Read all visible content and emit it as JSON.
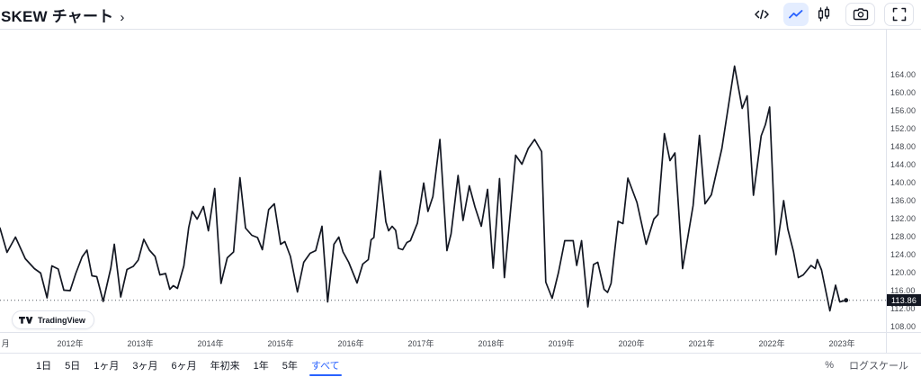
{
  "header": {
    "title": "SKEW チャート",
    "chevron": "›",
    "tools": {
      "code": "embed-code",
      "line_style": "line-chart",
      "candle_style": "candlestick-chart",
      "snapshot": "camera",
      "fullscreen": "fullscreen"
    }
  },
  "chart_data": {
    "type": "line",
    "title": "SKEW チャート",
    "xlabel": "",
    "ylabel": "",
    "xlim": [
      2011.0,
      2023.6
    ],
    "ylim": [
      106.6,
      173.6
    ],
    "grid": false,
    "legend": null,
    "last_value": 113.86,
    "last_value_label": "113.86",
    "y_ticks": [
      "164.00",
      "160.00",
      "156.00",
      "152.00",
      "148.00",
      "144.00",
      "140.00",
      "136.00",
      "132.00",
      "128.00",
      "124.00",
      "120.00",
      "116.00",
      "112.00",
      "108.00"
    ],
    "x_ticks": [
      {
        "label": "月",
        "year": 2011.08
      },
      {
        "label": "2012年",
        "year": 2012
      },
      {
        "label": "2013年",
        "year": 2013
      },
      {
        "label": "2014年",
        "year": 2014
      },
      {
        "label": "2015年",
        "year": 2015
      },
      {
        "label": "2016年",
        "year": 2016
      },
      {
        "label": "2017年",
        "year": 2017
      },
      {
        "label": "2018年",
        "year": 2018
      },
      {
        "label": "2019年",
        "year": 2019
      },
      {
        "label": "2020年",
        "year": 2020
      },
      {
        "label": "2021年",
        "year": 2021
      },
      {
        "label": "2022年",
        "year": 2022
      },
      {
        "label": "2023年",
        "year": 2023
      }
    ],
    "series": [
      {
        "name": "SKEW",
        "points": [
          [
            2011.0,
            129.9
          ],
          [
            2011.1,
            124.5
          ],
          [
            2011.22,
            127.9
          ],
          [
            2011.36,
            123.1
          ],
          [
            2011.49,
            120.9
          ],
          [
            2011.58,
            119.9
          ],
          [
            2011.67,
            114.4
          ],
          [
            2011.74,
            121.5
          ],
          [
            2011.83,
            120.8
          ],
          [
            2011.91,
            116.1
          ],
          [
            2012.0,
            116.0
          ],
          [
            2012.08,
            119.8
          ],
          [
            2012.17,
            123.5
          ],
          [
            2012.24,
            125.0
          ],
          [
            2012.31,
            119.3
          ],
          [
            2012.38,
            119.1
          ],
          [
            2012.47,
            113.6
          ],
          [
            2012.58,
            121.0
          ],
          [
            2012.63,
            126.3
          ],
          [
            2012.72,
            114.6
          ],
          [
            2012.81,
            120.7
          ],
          [
            2012.9,
            121.4
          ],
          [
            2012.97,
            122.8
          ],
          [
            2013.05,
            127.4
          ],
          [
            2013.13,
            125.0
          ],
          [
            2013.21,
            123.6
          ],
          [
            2013.28,
            119.5
          ],
          [
            2013.36,
            119.8
          ],
          [
            2013.42,
            116.3
          ],
          [
            2013.47,
            117.1
          ],
          [
            2013.53,
            116.5
          ],
          [
            2013.62,
            121.5
          ],
          [
            2013.69,
            130.0
          ],
          [
            2013.74,
            133.6
          ],
          [
            2013.81,
            131.9
          ],
          [
            2013.9,
            134.7
          ],
          [
            2013.97,
            129.3
          ],
          [
            2014.06,
            138.7
          ],
          [
            2014.15,
            117.6
          ],
          [
            2014.24,
            123.3
          ],
          [
            2014.33,
            124.6
          ],
          [
            2014.42,
            141.1
          ],
          [
            2014.5,
            129.9
          ],
          [
            2014.59,
            128.3
          ],
          [
            2014.67,
            127.8
          ],
          [
            2014.74,
            125.1
          ],
          [
            2014.83,
            134.0
          ],
          [
            2014.91,
            135.3
          ],
          [
            2015.0,
            126.3
          ],
          [
            2015.06,
            126.9
          ],
          [
            2015.14,
            123.6
          ],
          [
            2015.24,
            115.7
          ],
          [
            2015.33,
            122.3
          ],
          [
            2015.42,
            124.3
          ],
          [
            2015.5,
            124.9
          ],
          [
            2015.59,
            130.3
          ],
          [
            2015.67,
            113.5
          ],
          [
            2015.76,
            126.3
          ],
          [
            2015.83,
            127.9
          ],
          [
            2015.89,
            124.6
          ],
          [
            2015.97,
            122.3
          ],
          [
            2016.09,
            117.7
          ],
          [
            2016.17,
            121.9
          ],
          [
            2016.25,
            122.9
          ],
          [
            2016.29,
            127.3
          ],
          [
            2016.33,
            127.8
          ],
          [
            2016.42,
            142.6
          ],
          [
            2016.5,
            131.3
          ],
          [
            2016.54,
            129.3
          ],
          [
            2016.59,
            130.3
          ],
          [
            2016.64,
            129.4
          ],
          [
            2016.68,
            125.4
          ],
          [
            2016.74,
            125.1
          ],
          [
            2016.8,
            126.7
          ],
          [
            2016.85,
            127.1
          ],
          [
            2016.95,
            131.0
          ],
          [
            2017.04,
            139.9
          ],
          [
            2017.1,
            133.6
          ],
          [
            2017.17,
            136.9
          ],
          [
            2017.27,
            149.6
          ],
          [
            2017.37,
            124.9
          ],
          [
            2017.43,
            128.6
          ],
          [
            2017.53,
            141.6
          ],
          [
            2017.6,
            131.6
          ],
          [
            2017.69,
            139.3
          ],
          [
            2017.77,
            134.6
          ],
          [
            2017.86,
            130.3
          ],
          [
            2017.95,
            138.5
          ],
          [
            2018.03,
            121.0
          ],
          [
            2018.12,
            140.9
          ],
          [
            2018.19,
            118.9
          ],
          [
            2018.35,
            146.1
          ],
          [
            2018.44,
            144.1
          ],
          [
            2018.53,
            147.6
          ],
          [
            2018.62,
            149.6
          ],
          [
            2018.72,
            146.9
          ],
          [
            2018.78,
            117.9
          ],
          [
            2018.87,
            114.3
          ],
          [
            2018.96,
            120.0
          ],
          [
            2019.05,
            127.1
          ],
          [
            2019.17,
            127.1
          ],
          [
            2019.22,
            121.6
          ],
          [
            2019.29,
            127.1
          ],
          [
            2019.38,
            112.4
          ],
          [
            2019.46,
            121.8
          ],
          [
            2019.52,
            122.3
          ],
          [
            2019.61,
            116.3
          ],
          [
            2019.66,
            115.6
          ],
          [
            2019.71,
            117.6
          ],
          [
            2019.76,
            124.6
          ],
          [
            2019.81,
            131.4
          ],
          [
            2019.88,
            130.9
          ],
          [
            2019.95,
            141.0
          ],
          [
            2020.08,
            135.6
          ],
          [
            2020.21,
            126.3
          ],
          [
            2020.32,
            131.9
          ],
          [
            2020.38,
            132.9
          ],
          [
            2020.47,
            150.9
          ],
          [
            2020.55,
            144.9
          ],
          [
            2020.62,
            146.6
          ],
          [
            2020.73,
            120.9
          ],
          [
            2020.88,
            134.9
          ],
          [
            2020.97,
            150.5
          ],
          [
            2021.05,
            135.3
          ],
          [
            2021.14,
            137.3
          ],
          [
            2021.29,
            147.6
          ],
          [
            2021.47,
            165.9
          ],
          [
            2021.58,
            156.5
          ],
          [
            2021.65,
            159.3
          ],
          [
            2021.74,
            137.2
          ],
          [
            2021.85,
            150.4
          ],
          [
            2021.91,
            152.9
          ],
          [
            2021.97,
            156.8
          ],
          [
            2022.06,
            124.0
          ],
          [
            2022.17,
            136.0
          ],
          [
            2022.23,
            129.7
          ],
          [
            2022.31,
            124.7
          ],
          [
            2022.38,
            118.9
          ],
          [
            2022.45,
            119.5
          ],
          [
            2022.56,
            121.6
          ],
          [
            2022.62,
            120.9
          ],
          [
            2022.65,
            122.9
          ],
          [
            2022.71,
            120.6
          ],
          [
            2022.83,
            111.5
          ],
          [
            2022.91,
            117.2
          ],
          [
            2022.97,
            113.5
          ],
          [
            2023.06,
            113.86
          ]
        ]
      }
    ]
  },
  "attribution": {
    "label": "TradingView"
  },
  "toolbar": {
    "ranges": [
      "1日",
      "5日",
      "1ヶ月",
      "3ヶ月",
      "6ヶ月",
      "年初来",
      "1年",
      "5年",
      "すべて"
    ],
    "active_range": "すべて",
    "percent_label": "%",
    "log_label": "ログスケール"
  },
  "colors": {
    "accent": "#2962ff",
    "accent_bg": "#e4edff",
    "line": "#131722",
    "badge_bg": "#131722",
    "border": "#e0e3eb",
    "axis_text": "#42464e",
    "dotted_line": "#555a64"
  }
}
